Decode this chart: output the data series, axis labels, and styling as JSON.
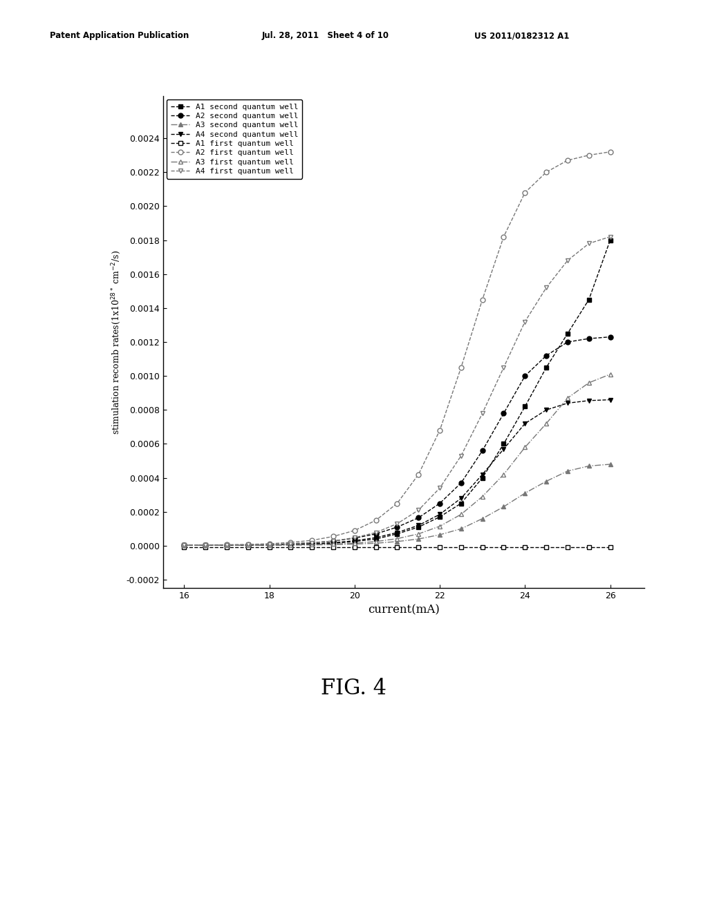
{
  "header_left": "Patent Application Publication",
  "header_mid": "Jul. 28, 2011   Sheet 4 of 10",
  "header_right": "US 2011/0182312 A1",
  "xlabel": "current(mA)",
  "fig_label": "FIG. 4",
  "xlim": [
    15.5,
    26.8
  ],
  "ylim": [
    -0.00025,
    0.00265
  ],
  "xticks": [
    16,
    18,
    20,
    22,
    24,
    26
  ],
  "yticks": [
    -0.0002,
    0.0,
    0.0002,
    0.0004,
    0.0006,
    0.0008,
    0.001,
    0.0012,
    0.0014,
    0.0016,
    0.0018,
    0.002,
    0.0022,
    0.0024
  ],
  "bg_color": "#ffffff",
  "series": [
    {
      "label": "A1 second quantum well",
      "color": "#000000",
      "marker": "s",
      "fillstyle": "full",
      "linestyle": "--",
      "x": [
        16,
        16.5,
        17,
        17.5,
        18,
        18.5,
        19,
        19.5,
        20,
        20.5,
        21,
        21.5,
        22,
        22.5,
        23,
        23.5,
        24,
        24.5,
        25,
        25.5,
        26
      ],
      "y": [
        5e-06,
        5e-06,
        5e-06,
        5e-06,
        5e-06,
        8e-06,
        1e-05,
        1.5e-05,
        2.5e-05,
        4e-05,
        7e-05,
        0.00011,
        0.00017,
        0.00025,
        0.0004,
        0.0006,
        0.00082,
        0.00105,
        0.00125,
        0.00145,
        0.0018
      ]
    },
    {
      "label": "A2 second quantum well",
      "color": "#000000",
      "marker": "o",
      "fillstyle": "full",
      "linestyle": "--",
      "x": [
        16,
        16.5,
        17,
        17.5,
        18,
        18.5,
        19,
        19.5,
        20,
        20.5,
        21,
        21.5,
        22,
        22.5,
        23,
        23.5,
        24,
        24.5,
        25,
        25.5,
        26
      ],
      "y": [
        5e-06,
        5e-06,
        5e-06,
        5e-06,
        8e-06,
        1.2e-05,
        1.8e-05,
        2.8e-05,
        4.5e-05,
        7e-05,
        0.00011,
        0.000165,
        0.00025,
        0.00037,
        0.00056,
        0.00078,
        0.001,
        0.00112,
        0.0012,
        0.00122,
        0.00123
      ]
    },
    {
      "label": "A3 second quantum well",
      "color": "#777777",
      "marker": "^",
      "fillstyle": "full",
      "linestyle": "-.",
      "x": [
        16,
        16.5,
        17,
        17.5,
        18,
        18.5,
        19,
        19.5,
        20,
        20.5,
        21,
        21.5,
        22,
        22.5,
        23,
        23.5,
        24,
        24.5,
        25,
        25.5,
        26
      ],
      "y": [
        3e-06,
        3e-06,
        3e-06,
        3e-06,
        3e-06,
        4e-06,
        5e-06,
        7e-06,
        1e-05,
        1.5e-05,
        2.5e-05,
        4e-05,
        6.5e-05,
        0.0001,
        0.00016,
        0.00023,
        0.00031,
        0.00038,
        0.00044,
        0.00047,
        0.00048
      ]
    },
    {
      "label": "A4 second quantum well",
      "color": "#000000",
      "marker": "v",
      "fillstyle": "full",
      "linestyle": "--",
      "x": [
        16,
        16.5,
        17,
        17.5,
        18,
        18.5,
        19,
        19.5,
        20,
        20.5,
        21,
        21.5,
        22,
        22.5,
        23,
        23.5,
        24,
        24.5,
        25,
        25.5,
        26
      ],
      "y": [
        4e-06,
        4e-06,
        4e-06,
        4e-06,
        5e-06,
        8e-06,
        1.2e-05,
        1.8e-05,
        3e-05,
        4.8e-05,
        7.8e-05,
        0.00012,
        0.000185,
        0.00028,
        0.00042,
        0.00057,
        0.00072,
        0.0008,
        0.00084,
        0.000855,
        0.00086
      ]
    },
    {
      "label": "A1 first quantum well",
      "color": "#000000",
      "marker": "s",
      "fillstyle": "none",
      "linestyle": "--",
      "x": [
        16,
        16.5,
        17,
        17.5,
        18,
        18.5,
        19,
        19.5,
        20,
        20.5,
        21,
        21.5,
        22,
        22.5,
        23,
        23.5,
        24,
        24.5,
        25,
        25.5,
        26
      ],
      "y": [
        -1e-05,
        -1e-05,
        -1e-05,
        -1e-05,
        -1e-05,
        -1e-05,
        -1e-05,
        -1e-05,
        -1e-05,
        -1e-05,
        -1e-05,
        -1e-05,
        -1e-05,
        -1e-05,
        -1e-05,
        -1e-05,
        -1e-05,
        -1e-05,
        -1e-05,
        -1e-05,
        -1e-05
      ]
    },
    {
      "label": "A2 first quantum well",
      "color": "#777777",
      "marker": "o",
      "fillstyle": "none",
      "linestyle": "--",
      "x": [
        16,
        16.5,
        17,
        17.5,
        18,
        18.5,
        19,
        19.5,
        20,
        20.5,
        21,
        21.5,
        22,
        22.5,
        23,
        23.5,
        24,
        24.5,
        25,
        25.5,
        26
      ],
      "y": [
        5e-06,
        5e-06,
        6e-06,
        8e-06,
        1.2e-05,
        2e-05,
        3.2e-05,
        5.5e-05,
        9e-05,
        0.00015,
        0.00025,
        0.00042,
        0.00068,
        0.00105,
        0.00145,
        0.00182,
        0.00208,
        0.0022,
        0.00227,
        0.0023,
        0.00232
      ]
    },
    {
      "label": "A3 first quantum well",
      "color": "#777777",
      "marker": "^",
      "fillstyle": "none",
      "linestyle": "-.",
      "x": [
        16,
        16.5,
        17,
        17.5,
        18,
        18.5,
        19,
        19.5,
        20,
        20.5,
        21,
        21.5,
        22,
        22.5,
        23,
        23.5,
        24,
        24.5,
        25,
        25.5,
        26
      ],
      "y": [
        3e-06,
        3e-06,
        3e-06,
        3e-06,
        4e-06,
        5e-06,
        7e-06,
        1e-05,
        1.5e-05,
        2.5e-05,
        4.2e-05,
        7e-05,
        0.000115,
        0.000185,
        0.00029,
        0.00042,
        0.00058,
        0.00072,
        0.00087,
        0.00096,
        0.00101
      ]
    },
    {
      "label": "A4 first quantum well",
      "color": "#777777",
      "marker": "v",
      "fillstyle": "none",
      "linestyle": "--",
      "x": [
        16,
        16.5,
        17,
        17.5,
        18,
        18.5,
        19,
        19.5,
        20,
        20.5,
        21,
        21.5,
        22,
        22.5,
        23,
        23.5,
        24,
        24.5,
        25,
        25.5,
        26
      ],
      "y": [
        4e-06,
        4e-06,
        5e-06,
        6e-06,
        8e-06,
        1.2e-05,
        1.8e-05,
        2.8e-05,
        4.8e-05,
        7.8e-05,
        0.00013,
        0.00021,
        0.00034,
        0.00053,
        0.00078,
        0.00105,
        0.00132,
        0.00152,
        0.00168,
        0.00178,
        0.00182
      ]
    }
  ]
}
